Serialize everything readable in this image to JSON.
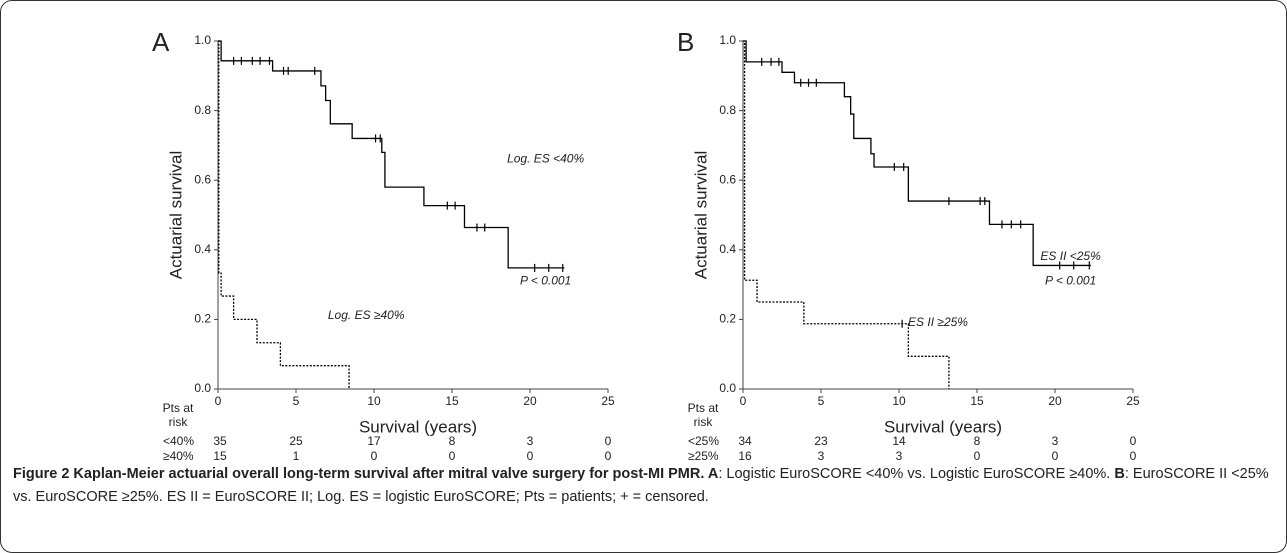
{
  "chart_data": [
    {
      "type": "step",
      "panel_label": "A",
      "ylabel": "Actuarial survival",
      "xlabel": "Survival (years)",
      "xlim": [
        0,
        25
      ],
      "xticks": [
        0,
        5,
        10,
        15,
        20,
        25
      ],
      "ylim": [
        0,
        1
      ],
      "yticks": [
        {
          "value": 0,
          "label": "0.0"
        },
        {
          "value": 0.2,
          "label": "0.2"
        },
        {
          "value": 0.4,
          "label": "0.4"
        },
        {
          "value": 0.6,
          "label": "0.6"
        },
        {
          "value": 0.8,
          "label": "0.8"
        },
        {
          "value": 1,
          "label": "1.0"
        }
      ],
      "series": [
        {
          "name": "Log. ES <40%",
          "color": "#000000",
          "dashed": false,
          "x": [
            0,
            0.2,
            3.5,
            6.6,
            6.9,
            7.2,
            8.6,
            10.5,
            10.7,
            13.2,
            15.8,
            18.6,
            22.2
          ],
          "values": [
            1.0,
            0.943,
            0.914,
            0.871,
            0.829,
            0.762,
            0.72,
            0.68,
            0.58,
            0.527,
            0.464,
            0.348,
            0.348
          ],
          "censored": [
            1,
            1.5,
            2.2,
            2.7,
            3.3,
            4.2,
            4.5,
            6.2,
            10.1,
            10.4,
            14.7,
            15.2,
            16.6,
            17.1,
            20.3,
            21.2,
            22.1
          ],
          "label_pos": [
            21,
            0.66
          ]
        },
        {
          "name": "Log. ES ≥40%",
          "color": "#000000",
          "dashed": true,
          "x": [
            0,
            0.05,
            0.2,
            1.0,
            2.5,
            4.0,
            8.4
          ],
          "values": [
            1.0,
            0.333,
            0.267,
            0.2,
            0.133,
            0.067,
            0
          ],
          "censored": [],
          "label_pos": [
            9.5,
            0.21
          ]
        }
      ],
      "annotation": {
        "text": "P < 0.001",
        "pos": [
          21,
          0.31
        ]
      },
      "risk_table": {
        "title": "Pts at risk",
        "rows": [
          {
            "label": "<40%",
            "values": [
              35,
              25,
              17,
              8,
              3,
              0
            ]
          },
          {
            "label": "≥40%",
            "values": [
              15,
              1,
              0,
              0,
              0,
              0
            ]
          }
        ]
      }
    },
    {
      "type": "step",
      "panel_label": "B",
      "ylabel": "Actuarial survival",
      "xlabel": "Survival (years)",
      "xlim": [
        0,
        25
      ],
      "xticks": [
        0,
        5,
        10,
        15,
        20,
        25
      ],
      "ylim": [
        0,
        1
      ],
      "yticks": [
        {
          "value": 0,
          "label": "0.0"
        },
        {
          "value": 0.2,
          "label": "0.2"
        },
        {
          "value": 0.4,
          "label": "0.4"
        },
        {
          "value": 0.6,
          "label": "0.6"
        },
        {
          "value": 0.8,
          "label": "0.8"
        },
        {
          "value": 1,
          "label": "1.0"
        }
      ],
      "series": [
        {
          "name": "ES II <25%",
          "color": "#000000",
          "dashed": false,
          "x": [
            0,
            0.2,
            2.5,
            3.3,
            6.5,
            6.9,
            7.1,
            8.2,
            8.4,
            10.6,
            15.8,
            18.6,
            22.3
          ],
          "values": [
            1.0,
            0.94,
            0.91,
            0.88,
            0.84,
            0.79,
            0.72,
            0.676,
            0.638,
            0.54,
            0.473,
            0.355,
            0.355
          ],
          "censored": [
            1.2,
            1.8,
            2.3,
            3.7,
            4.2,
            4.7,
            9.7,
            10.3,
            13.2,
            15.2,
            15.5,
            16.6,
            17.2,
            17.8,
            20.3,
            21.2,
            22.2
          ],
          "label_pos": [
            21,
            0.38
          ]
        },
        {
          "name": "ES II ≥25%",
          "color": "#000000",
          "dashed": true,
          "x": [
            0,
            0.1,
            0.9,
            3.9,
            10.6,
            13.2
          ],
          "values": [
            1.0,
            0.3125,
            0.25,
            0.1875,
            0.094,
            0
          ],
          "censored": [
            10.2
          ],
          "label_pos": [
            12.5,
            0.19
          ]
        }
      ],
      "annotation": {
        "text": "P < 0.001",
        "pos": [
          21,
          0.31
        ]
      },
      "risk_table": {
        "title": "Pts at risk",
        "rows": [
          {
            "label": "<25%",
            "values": [
              34,
              23,
              14,
              8,
              3,
              0
            ]
          },
          {
            "label": "≥25%",
            "values": [
              16,
              3,
              3,
              0,
              0,
              0
            ]
          }
        ]
      }
    }
  ],
  "caption": {
    "parts": [
      {
        "text": "Figure 2 Kaplan-Meier actuarial overall long-term survival after mitral valve surgery for post-MI PMR. ",
        "bold": true
      },
      {
        "text": "A",
        "bold": true
      },
      {
        "text": ": Logistic EuroSCORE <40% vs. Logistic EuroSCORE ≥40%. ",
        "bold": false
      },
      {
        "text": "B",
        "bold": true
      },
      {
        "text": ": EuroSCORE II <25% vs. EuroSCORE ≥25%. ES II = EuroSCORE II; Log. ES = logistic EuroSCORE; Pts = patients; + = censored.",
        "bold": false
      }
    ]
  }
}
